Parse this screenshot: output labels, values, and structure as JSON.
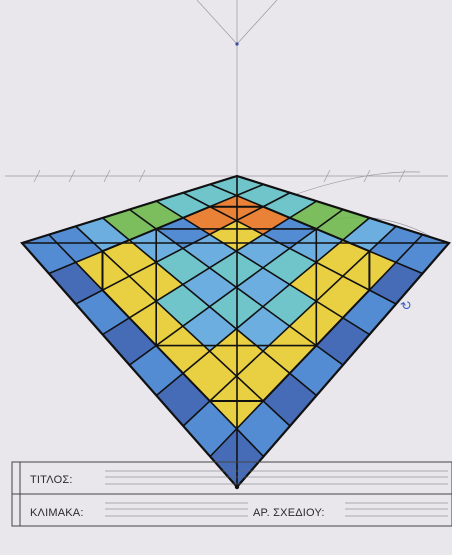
{
  "title_block": {
    "title_label": "ΤΙΤΛΟΣ:",
    "scale_label": "ΚΛΙΜΑΚΑ:",
    "drawing_no_label": "ΑΡ. ΣΧΕΔΙΟΥ:"
  },
  "colors": {
    "paper": "#e9e7ec",
    "ink": "#111111",
    "pencil": "#9a9aa2",
    "blue_dark": "#2f5bb0",
    "blue_mid": "#3d7fcf",
    "blue_light": "#5aa6de",
    "teal": "#5fc0c6",
    "green": "#6cb84a",
    "yellow": "#e8cc2a",
    "orange": "#e8741e"
  },
  "drawing": {
    "subject": "perspective-tiled-floor",
    "grid_divisions": 8,
    "annotation_mark": "↻"
  }
}
